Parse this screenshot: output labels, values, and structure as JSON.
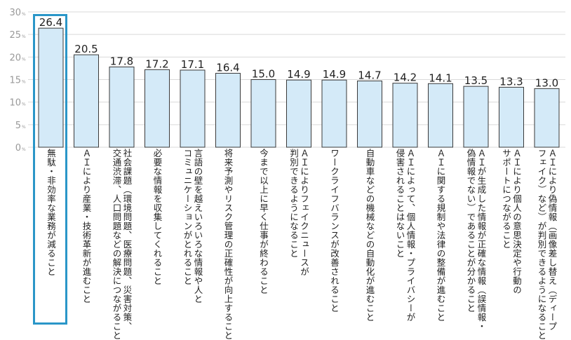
{
  "chart_data": {
    "type": "bar",
    "title": "",
    "xlabel": "",
    "ylabel": "",
    "ylim": [
      0,
      30
    ],
    "y_ticks": [
      0,
      5,
      10,
      15,
      20,
      25,
      30
    ],
    "y_unit": "%",
    "grid": true,
    "categories": [
      "無駄・非効率な業務が減ること",
      "ＡＩにより産業・技術革新が進むこと",
      "社会課題（環境問題、医療問題、災害対策、\n交通渋滞、人口問題などの解決につながること",
      "必要な情報を収集してくれること",
      "言語の壁を越えいろいろな情報や人と\nコミュニケーションがとれること",
      "将来予測やリスク管理の正確性が向上すること",
      "今まで以上に早く仕事が終わること",
      "ＡＩによりフェイクニュースが\n判別できるようになること",
      "ワークライフバランスが改善されること",
      "自動車などの機械などの自動化が進むこと",
      "ＡＩによって、個人情報・プライバシーが\n侵害されることはないこと",
      "ＡＩに関する規制や法律の整備が進むこと",
      "ＡＩが生成した情報が正確な情報（誤情報・\n偽情報でない）であることが分かること",
      "ＡＩにより個人の意思決定や行動の\nサポートにつながること",
      "ＡＩにより偽情報（画像差し替え（ディープ\nフェイク）など）が判別できるようになること"
    ],
    "values": [
      26.4,
      20.5,
      17.8,
      17.2,
      17.1,
      16.4,
      15.0,
      14.9,
      14.9,
      14.7,
      14.2,
      14.1,
      13.5,
      13.3,
      13.0
    ],
    "value_labels": [
      "26.4",
      "20.5",
      "17.8",
      "17.2",
      "17.1",
      "16.4",
      "15.0",
      "14.9",
      "14.9",
      "14.7",
      "14.2",
      "14.1",
      "13.5",
      "13.3",
      "13.0"
    ],
    "highlighted_index": 0,
    "colors": {
      "bar_fill": "#d4eaf8",
      "bar_stroke": "#3a3a3a",
      "grid": "#d9d9d9",
      "axis_text": "#999999",
      "highlight": "#2a96c8"
    }
  }
}
